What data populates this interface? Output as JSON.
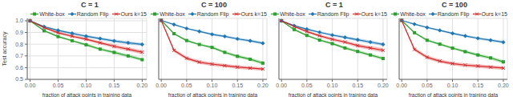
{
  "chart_data": [
    {
      "type": "line",
      "title": "C = 1",
      "xlabel": "fraction of attack points in training data",
      "ylabel": "Test accuracy",
      "x": [
        0.0,
        0.025,
        0.05,
        0.075,
        0.1,
        0.125,
        0.15,
        0.175,
        0.2
      ],
      "series": [
        {
          "name": "White-box",
          "color": "#2ca02c",
          "marker": "square",
          "values": [
            1.0,
            0.915,
            0.865,
            0.83,
            0.795,
            0.758,
            0.73,
            0.7,
            0.668
          ],
          "std": [
            0.003,
            0.007,
            0.009,
            0.009,
            0.011,
            0.011,
            0.013,
            0.013,
            0.013
          ]
        },
        {
          "name": "Random Flip",
          "color": "#1f77b4",
          "marker": "diamond",
          "values": [
            1.0,
            0.95,
            0.918,
            0.893,
            0.868,
            0.848,
            0.828,
            0.812,
            0.798
          ],
          "std": [
            0.003,
            0.007,
            0.009,
            0.009,
            0.011,
            0.011,
            0.013,
            0.013,
            0.013
          ]
        },
        {
          "name": "Ours k=15",
          "color": "#d62728",
          "marker": "x",
          "values": [
            1.0,
            0.942,
            0.898,
            0.868,
            0.843,
            0.812,
            0.782,
            0.758,
            0.732
          ],
          "std": [
            0.003,
            0.009,
            0.011,
            0.011,
            0.013,
            0.013,
            0.016,
            0.016,
            0.018
          ]
        }
      ],
      "xlim": [
        -0.005,
        0.208
      ],
      "xticks": [
        {
          "value": 0.0,
          "label": "0.00"
        },
        {
          "value": 0.05,
          "label": "0.05"
        },
        {
          "value": 0.1,
          "label": "0.10"
        },
        {
          "value": 0.15,
          "label": "0.15"
        },
        {
          "value": 0.2,
          "label": "0.20"
        }
      ],
      "ylim": [
        0.5,
        1.02
      ],
      "yticks": [
        0.5,
        0.6,
        0.7,
        0.8,
        0.9,
        {
          "value": 1.0,
          "label": "1.0"
        }
      ],
      "grid": true,
      "legend": "upper right"
    },
    {
      "type": "line",
      "title": "C = 100",
      "xlabel": "fraction of attack points in training data",
      "x": [
        0.0,
        0.025,
        0.05,
        0.075,
        0.1,
        0.125,
        0.15,
        0.175,
        0.2
      ],
      "series": [
        {
          "name": "White-box",
          "color": "#2ca02c",
          "marker": "square",
          "values": [
            1.0,
            0.865,
            0.795,
            0.755,
            0.725,
            0.675,
            0.635,
            0.605,
            0.565
          ],
          "std": [
            0.003,
            0.009,
            0.011,
            0.011,
            0.013,
            0.013,
            0.016,
            0.016,
            0.018
          ]
        },
        {
          "name": "Random Flip",
          "color": "#1f77b4",
          "marker": "diamond",
          "values": [
            1.0,
            0.958,
            0.918,
            0.888,
            0.858,
            0.838,
            0.812,
            0.792,
            0.768
          ],
          "std": [
            0.003,
            0.007,
            0.009,
            0.009,
            0.011,
            0.011,
            0.013,
            0.013,
            0.013
          ]
        },
        {
          "name": "Ours k=15",
          "color": "#d62728",
          "marker": "x",
          "values": [
            1.0,
            0.695,
            0.615,
            0.575,
            0.555,
            0.54,
            0.525,
            0.515,
            0.505
          ],
          "std": [
            0.003,
            0.018,
            0.018,
            0.018,
            0.018,
            0.018,
            0.018,
            0.018,
            0.018
          ]
        }
      ],
      "xlim": [
        -0.005,
        0.208
      ],
      "xticks": [
        {
          "value": 0.0,
          "label": "0.00"
        },
        {
          "value": 0.05,
          "label": "0.05"
        },
        {
          "value": 0.1,
          "label": "0.10"
        },
        {
          "value": 0.15,
          "label": "0.15"
        },
        {
          "value": 0.2,
          "label": "0.20"
        }
      ],
      "ylim": [
        0.4,
        1.02
      ],
      "yticks": [
        0.4,
        0.5,
        0.6,
        0.7,
        0.8,
        0.9,
        1.0
      ],
      "grid": true,
      "legend": "upper right",
      "tick_labels": "x"
    },
    {
      "type": "line",
      "title": "C = 1",
      "xlabel": "fraction of attack points in training data",
      "x": [
        0.0,
        0.025,
        0.05,
        0.075,
        0.1,
        0.125,
        0.15,
        0.175,
        0.2
      ],
      "series": [
        {
          "name": "White-box",
          "color": "#2ca02c",
          "marker": "square",
          "values": [
            1.0,
            0.925,
            0.875,
            0.835,
            0.805,
            0.768,
            0.738,
            0.708,
            0.678
          ],
          "std": [
            0.003,
            0.007,
            0.009,
            0.009,
            0.011,
            0.011,
            0.013,
            0.013,
            0.013
          ]
        },
        {
          "name": "Random Flip",
          "color": "#1f77b4",
          "marker": "diamond",
          "values": [
            1.0,
            0.958,
            0.928,
            0.902,
            0.878,
            0.858,
            0.838,
            0.818,
            0.798
          ],
          "std": [
            0.003,
            0.007,
            0.009,
            0.009,
            0.011,
            0.011,
            0.013,
            0.013,
            0.013
          ]
        },
        {
          "name": "Ours k=15",
          "color": "#d62728",
          "marker": "x",
          "values": [
            1.0,
            0.952,
            0.908,
            0.872,
            0.842,
            0.818,
            0.788,
            0.768,
            0.748
          ],
          "std": [
            0.003,
            0.009,
            0.011,
            0.011,
            0.013,
            0.013,
            0.016,
            0.016,
            0.018
          ]
        }
      ],
      "xlim": [
        -0.005,
        0.208
      ],
      "xticks": [
        {
          "value": 0.0,
          "label": "0.00"
        },
        {
          "value": 0.05,
          "label": "0.05"
        },
        {
          "value": 0.1,
          "label": "0.10"
        },
        {
          "value": 0.15,
          "label": "0.15"
        },
        {
          "value": 0.2,
          "label": "0.20"
        }
      ],
      "ylim": [
        0.5,
        1.02
      ],
      "yticks": [
        0.5,
        0.6,
        0.7,
        0.8,
        0.9,
        1.0
      ],
      "grid": true,
      "legend": "upper right",
      "tick_labels": "x"
    },
    {
      "type": "line",
      "title": "C = 100",
      "xlabel": "fraction of attack points in training data",
      "x": [
        0.0,
        0.025,
        0.05,
        0.075,
        0.1,
        0.125,
        0.15,
        0.175,
        0.2
      ],
      "series": [
        {
          "name": "White-box",
          "color": "#2ca02c",
          "marker": "square",
          "values": [
            1.0,
            0.875,
            0.798,
            0.758,
            0.718,
            0.682,
            0.648,
            0.618,
            0.578
          ],
          "std": [
            0.003,
            0.009,
            0.011,
            0.011,
            0.013,
            0.013,
            0.016,
            0.016,
            0.018
          ]
        },
        {
          "name": "Random Flip",
          "color": "#1f77b4",
          "marker": "diamond",
          "values": [
            1.0,
            0.962,
            0.928,
            0.898,
            0.868,
            0.842,
            0.818,
            0.798,
            0.778
          ],
          "std": [
            0.003,
            0.007,
            0.009,
            0.009,
            0.011,
            0.011,
            0.013,
            0.013,
            0.013
          ]
        },
        {
          "name": "Ours k=15",
          "color": "#d62728",
          "marker": "x",
          "values": [
            1.0,
            0.705,
            0.625,
            0.585,
            0.56,
            0.545,
            0.535,
            0.525,
            0.515
          ],
          "std": [
            0.003,
            0.018,
            0.018,
            0.018,
            0.018,
            0.018,
            0.018,
            0.018,
            0.018
          ]
        }
      ],
      "xlim": [
        -0.005,
        0.208
      ],
      "xticks": [
        {
          "value": 0.0,
          "label": "0.00"
        },
        {
          "value": 0.05,
          "label": "0.05"
        },
        {
          "value": 0.1,
          "label": "0.10"
        },
        {
          "value": 0.15,
          "label": "0.15"
        },
        {
          "value": 0.2,
          "label": "0.20"
        }
      ],
      "ylim": [
        0.4,
        1.02
      ],
      "yticks": [
        0.4,
        0.5,
        0.6,
        0.7,
        0.8,
        0.9,
        1.0
      ],
      "grid": true,
      "legend": "upper right",
      "tick_labels": "x"
    }
  ]
}
